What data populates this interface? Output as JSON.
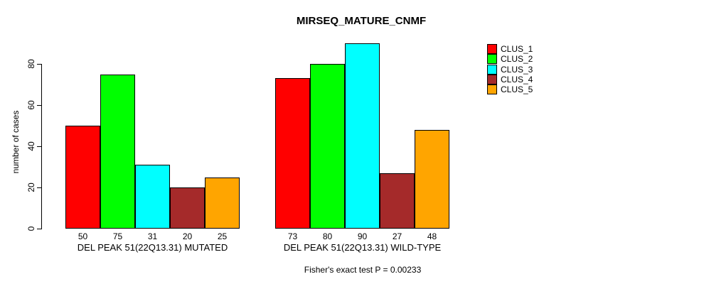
{
  "chart_data": {
    "type": "bar",
    "title": "MIRSEQ_MATURE_CNMF",
    "ylabel": "number of cases",
    "xlabel": "",
    "annotation": "Fisher's exact test P = 0.00233",
    "categories": [
      "DEL PEAK 51(22Q13.31) MUTATED",
      "DEL PEAK 51(22Q13.31) WILD-TYPE"
    ],
    "series": [
      {
        "name": "CLUS_1",
        "color": "#FF0000",
        "values": [
          50,
          73
        ]
      },
      {
        "name": "CLUS_2",
        "color": "#00FF00",
        "values": [
          75,
          80
        ]
      },
      {
        "name": "CLUS_3",
        "color": "#00FFFF",
        "values": [
          31,
          90
        ]
      },
      {
        "name": "CLUS_4",
        "color": "#A52A2A",
        "values": [
          20,
          27
        ]
      },
      {
        "name": "CLUS_5",
        "color": "#FFA500",
        "values": [
          25,
          48
        ]
      }
    ],
    "yticks": [
      0,
      20,
      40,
      60,
      80
    ],
    "ylim": [
      0,
      90
    ],
    "axis_max": 80,
    "bar_value_labels": true,
    "legend_position": "right",
    "grid": false,
    "axis_color": "#000000",
    "background_color": "#FFFFFF"
  }
}
